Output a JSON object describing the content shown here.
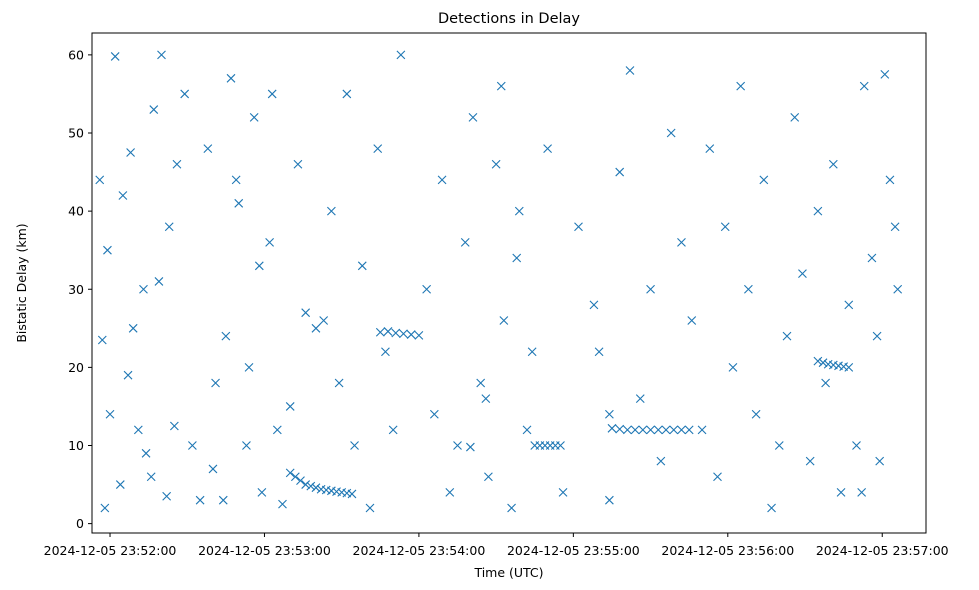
{
  "chart_data": {
    "type": "scatter",
    "title": "Detections in Delay",
    "xlabel": "Time (UTC)",
    "ylabel": "Bistatic Delay (km)",
    "xlim": [
      "2024-12-05 23:51:53",
      "2024-12-05 23:57:17"
    ],
    "ylim": [
      -1.2,
      62.8
    ],
    "x_ticks": [
      "2024-12-05 23:52:00",
      "2024-12-05 23:53:00",
      "2024-12-05 23:54:00",
      "2024-12-05 23:55:00",
      "2024-12-05 23:56:00",
      "2024-12-05 23:57:00"
    ],
    "y_ticks": [
      0,
      10,
      20,
      30,
      40,
      50,
      60
    ],
    "marker": "x",
    "color": "#1f77b4",
    "grid": false,
    "points_note": "approximate sample of detections",
    "series": [
      {
        "x": [
          "2024-12-05 23:51:56",
          "2024-12-05 23:51:58",
          "2024-12-05 23:51:59",
          "2024-12-05 23:52:02",
          "2024-12-05 23:52:05",
          "2024-12-05 23:52:08",
          "2024-12-05 23:52:11",
          "2024-12-05 23:52:14",
          "2024-12-05 23:52:17",
          "2024-12-05 23:52:20",
          "2024-12-05 23:52:23",
          "2024-12-05 23:52:26",
          "2024-12-05 23:52:29",
          "2024-12-05 23:52:32",
          "2024-12-05 23:52:35",
          "2024-12-05 23:51:57",
          "2024-12-05 23:52:00",
          "2024-12-05 23:52:04",
          "2024-12-05 23:52:07",
          "2024-12-05 23:52:09",
          "2024-12-05 23:52:13",
          "2024-12-05 23:52:16",
          "2024-12-05 23:52:19",
          "2024-12-05 23:52:22",
          "2024-12-05 23:52:25",
          "2024-12-05 23:52:38",
          "2024-12-05 23:52:41",
          "2024-12-05 23:52:44",
          "2024-12-05 23:52:47",
          "2024-12-05 23:52:50",
          "2024-12-05 23:52:53",
          "2024-12-05 23:52:56",
          "2024-12-05 23:52:59",
          "2024-12-05 23:53:02",
          "2024-12-05 23:53:05",
          "2024-12-05 23:52:40",
          "2024-12-05 23:52:45",
          "2024-12-05 23:52:49",
          "2024-12-05 23:52:54",
          "2024-12-05 23:52:58",
          "2024-12-05 23:53:03",
          "2024-12-05 23:53:07",
          "2024-12-05 23:53:10",
          "2024-12-05 23:53:13",
          "2024-12-05 23:53:16",
          "2024-12-05 23:53:10",
          "2024-12-05 23:53:12",
          "2024-12-05 23:53:14",
          "2024-12-05 23:53:16",
          "2024-12-05 23:53:18",
          "2024-12-05 23:53:20",
          "2024-12-05 23:53:22",
          "2024-12-05 23:53:24",
          "2024-12-05 23:53:26",
          "2024-12-05 23:53:28",
          "2024-12-05 23:53:30",
          "2024-12-05 23:53:32",
          "2024-12-05 23:53:34",
          "2024-12-05 23:53:20",
          "2024-12-05 23:53:23",
          "2024-12-05 23:53:26",
          "2024-12-05 23:53:29",
          "2024-12-05 23:53:32",
          "2024-12-05 23:53:35",
          "2024-12-05 23:53:38",
          "2024-12-05 23:53:41",
          "2024-12-05 23:53:44",
          "2024-12-05 23:53:47",
          "2024-12-05 23:53:50",
          "2024-12-05 23:53:53",
          "2024-12-05 23:53:45",
          "2024-12-05 23:53:48",
          "2024-12-05 23:53:51",
          "2024-12-05 23:53:54",
          "2024-12-05 23:53:57",
          "2024-12-05 23:54:00",
          "2024-12-05 23:54:03",
          "2024-12-05 23:54:06",
          "2024-12-05 23:54:09",
          "2024-12-05 23:54:12",
          "2024-12-05 23:54:15",
          "2024-12-05 23:54:18",
          "2024-12-05 23:54:21",
          "2024-12-05 23:54:24",
          "2024-12-05 23:54:27",
          "2024-12-05 23:54:30",
          "2024-12-05 23:54:33",
          "2024-12-05 23:54:36",
          "2024-12-05 23:54:39",
          "2024-12-05 23:54:42",
          "2024-12-05 23:54:20",
          "2024-12-05 23:54:26",
          "2024-12-05 23:54:32",
          "2024-12-05 23:54:38",
          "2024-12-05 23:54:44",
          "2024-12-05 23:54:50",
          "2024-12-05 23:54:56",
          "2024-12-05 23:55:02",
          "2024-12-05 23:55:08",
          "2024-12-05 23:55:14",
          "2024-12-05 23:54:45",
          "2024-12-05 23:54:47",
          "2024-12-05 23:54:49",
          "2024-12-05 23:54:51",
          "2024-12-05 23:54:53",
          "2024-12-05 23:54:55",
          "2024-12-05 23:55:15",
          "2024-12-05 23:55:18",
          "2024-12-05 23:55:21",
          "2024-12-05 23:55:24",
          "2024-12-05 23:55:27",
          "2024-12-05 23:55:30",
          "2024-12-05 23:55:33",
          "2024-12-05 23:55:36",
          "2024-12-05 23:55:39",
          "2024-12-05 23:55:42",
          "2024-12-05 23:55:45",
          "2024-12-05 23:55:10",
          "2024-12-05 23:55:14",
          "2024-12-05 23:55:18",
          "2024-12-05 23:55:22",
          "2024-12-05 23:55:26",
          "2024-12-05 23:55:30",
          "2024-12-05 23:55:34",
          "2024-12-05 23:55:38",
          "2024-12-05 23:55:42",
          "2024-12-05 23:55:46",
          "2024-12-05 23:55:50",
          "2024-12-05 23:55:53",
          "2024-12-05 23:55:56",
          "2024-12-05 23:55:59",
          "2024-12-05 23:56:02",
          "2024-12-05 23:56:05",
          "2024-12-05 23:56:08",
          "2024-12-05 23:56:11",
          "2024-12-05 23:56:14",
          "2024-12-05 23:56:17",
          "2024-12-05 23:56:20",
          "2024-12-05 23:56:23",
          "2024-12-05 23:56:26",
          "2024-12-05 23:56:29",
          "2024-12-05 23:56:32",
          "2024-12-05 23:56:35",
          "2024-12-05 23:56:38",
          "2024-12-05 23:56:41",
          "2024-12-05 23:56:44",
          "2024-12-05 23:56:47",
          "2024-12-05 23:56:35",
          "2024-12-05 23:56:37",
          "2024-12-05 23:56:39",
          "2024-12-05 23:56:41",
          "2024-12-05 23:56:43",
          "2024-12-05 23:56:45",
          "2024-12-05 23:56:47",
          "2024-12-05 23:56:50",
          "2024-12-05 23:56:53",
          "2024-12-05 23:56:56",
          "2024-12-05 23:56:59",
          "2024-12-05 23:57:01",
          "2024-12-05 23:57:03",
          "2024-12-05 23:57:05",
          "2024-12-05 23:57:06",
          "2024-12-05 23:56:52",
          "2024-12-05 23:56:58"
        ],
        "y": [
          44,
          2,
          35,
          59.8,
          42,
          47.5,
          12,
          9,
          53,
          60,
          38,
          46,
          55,
          10,
          3,
          23.5,
          14,
          5,
          19,
          25,
          30,
          6,
          31,
          3.5,
          12.5,
          48,
          18,
          3,
          57,
          41,
          10,
          52,
          4,
          36,
          12,
          7,
          24,
          44,
          20,
          33,
          55,
          2.5,
          15,
          46,
          27,
          6.5,
          6,
          5.5,
          5,
          4.8,
          4.6,
          4.4,
          4.3,
          4.2,
          4.1,
          4,
          3.9,
          3.8,
          25,
          26,
          40,
          18,
          55,
          10,
          33,
          2,
          48,
          22,
          12,
          60,
          24.5,
          24.6,
          24.4,
          24.3,
          24.2,
          24.1,
          30,
          14,
          44,
          4,
          10,
          36,
          52,
          18,
          6,
          46,
          26,
          2,
          40,
          12,
          9.8,
          16,
          56,
          34,
          22,
          48,
          4,
          38,
          28,
          14,
          10,
          10,
          10,
          10,
          10,
          10,
          12.2,
          12.1,
          12,
          12,
          12,
          12,
          12,
          12,
          12,
          12,
          12,
          22,
          3,
          45,
          58,
          16,
          30,
          8,
          50,
          36,
          26,
          12,
          48,
          6,
          38,
          20,
          56,
          30,
          14,
          44,
          2,
          10,
          24,
          52,
          32,
          8,
          40,
          18,
          46,
          4,
          28,
          20.8,
          20.6,
          20.4,
          20.3,
          20.2,
          20.1,
          20,
          10,
          56,
          34,
          8,
          57.5,
          44,
          38,
          30,
          4,
          24
        ]
      }
    ]
  }
}
